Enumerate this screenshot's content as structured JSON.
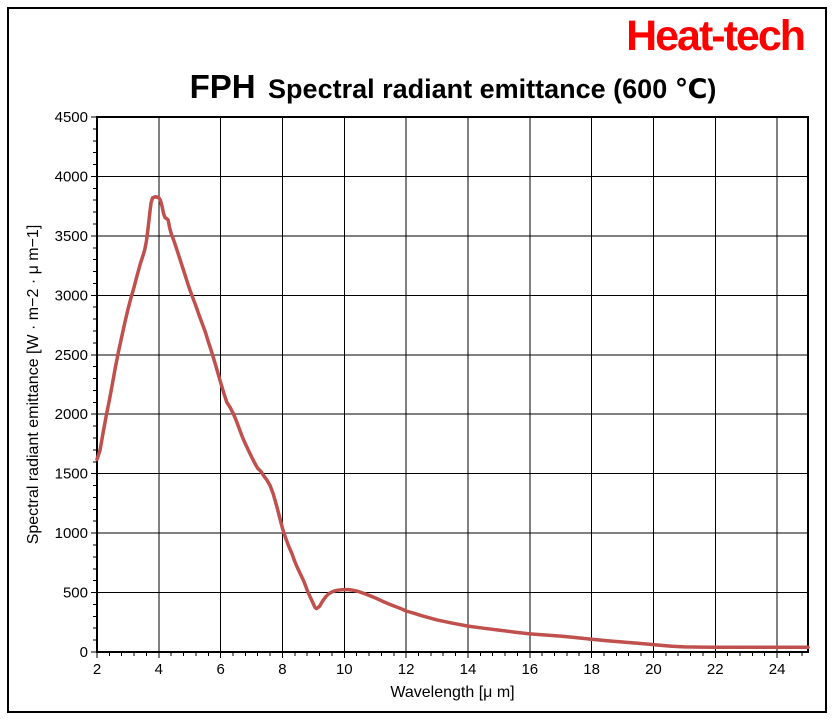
{
  "logo": {
    "text": "Heat-tech",
    "color": "#ff0000"
  },
  "title": {
    "prefix": "FPH",
    "main": "Spectral radiant emittance (600 ℃)"
  },
  "chart_data": {
    "type": "line",
    "title": "FPH Spectral radiant emittance (600 ℃)",
    "xlabel": "Wavelength [μ m]",
    "ylabel": "Spectral radiant emittance [W · m−2 · μ m−1]",
    "xlim": [
      2,
      25
    ],
    "ylim": [
      0,
      4500
    ],
    "x_major_ticks": [
      2,
      4,
      6,
      8,
      10,
      12,
      14,
      16,
      18,
      20,
      22,
      24
    ],
    "x_minor_step": 0.4,
    "y_major_step": 500,
    "y_minor_step": 100,
    "grid": true,
    "legend": "none",
    "line_color": "#c0504d",
    "grid_color": "#000000",
    "series": [
      {
        "name": "600 ℃",
        "points": [
          [
            2.0,
            1620
          ],
          [
            2.1,
            1700
          ],
          [
            2.2,
            1850
          ],
          [
            2.3,
            1990
          ],
          [
            2.4,
            2120
          ],
          [
            2.5,
            2260
          ],
          [
            2.6,
            2400
          ],
          [
            2.7,
            2530
          ],
          [
            2.8,
            2650
          ],
          [
            2.9,
            2770
          ],
          [
            3.0,
            2880
          ],
          [
            3.1,
            2980
          ],
          [
            3.2,
            3070
          ],
          [
            3.3,
            3170
          ],
          [
            3.4,
            3265
          ],
          [
            3.5,
            3345
          ],
          [
            3.55,
            3390
          ],
          [
            3.6,
            3460
          ],
          [
            3.65,
            3560
          ],
          [
            3.7,
            3680
          ],
          [
            3.75,
            3780
          ],
          [
            3.8,
            3820
          ],
          [
            3.9,
            3830
          ],
          [
            4.0,
            3820
          ],
          [
            4.05,
            3800
          ],
          [
            4.1,
            3755
          ],
          [
            4.15,
            3690
          ],
          [
            4.2,
            3655
          ],
          [
            4.3,
            3635
          ],
          [
            4.35,
            3570
          ],
          [
            4.4,
            3520
          ],
          [
            4.5,
            3450
          ],
          [
            4.6,
            3370
          ],
          [
            4.7,
            3290
          ],
          [
            4.8,
            3210
          ],
          [
            4.9,
            3130
          ],
          [
            5.0,
            3050
          ],
          [
            5.1,
            2980
          ],
          [
            5.2,
            2910
          ],
          [
            5.3,
            2835
          ],
          [
            5.4,
            2765
          ],
          [
            5.5,
            2695
          ],
          [
            5.6,
            2610
          ],
          [
            5.7,
            2530
          ],
          [
            5.8,
            2445
          ],
          [
            5.9,
            2355
          ],
          [
            6.0,
            2265
          ],
          [
            6.1,
            2180
          ],
          [
            6.2,
            2100
          ],
          [
            6.3,
            2060
          ],
          [
            6.4,
            2010
          ],
          [
            6.5,
            1950
          ],
          [
            6.6,
            1880
          ],
          [
            6.7,
            1810
          ],
          [
            6.8,
            1750
          ],
          [
            6.9,
            1695
          ],
          [
            7.0,
            1640
          ],
          [
            7.1,
            1590
          ],
          [
            7.2,
            1545
          ],
          [
            7.3,
            1520
          ],
          [
            7.4,
            1480
          ],
          [
            7.5,
            1445
          ],
          [
            7.6,
            1400
          ],
          [
            7.7,
            1330
          ],
          [
            7.8,
            1240
          ],
          [
            7.9,
            1140
          ],
          [
            8.0,
            1040
          ],
          [
            8.1,
            960
          ],
          [
            8.2,
            890
          ],
          [
            8.3,
            830
          ],
          [
            8.4,
            760
          ],
          [
            8.5,
            700
          ],
          [
            8.6,
            645
          ],
          [
            8.7,
            590
          ],
          [
            8.8,
            520
          ],
          [
            8.9,
            460
          ],
          [
            9.0,
            405
          ],
          [
            9.05,
            375
          ],
          [
            9.1,
            365
          ],
          [
            9.2,
            385
          ],
          [
            9.3,
            430
          ],
          [
            9.4,
            465
          ],
          [
            9.5,
            490
          ],
          [
            9.6,
            505
          ],
          [
            9.7,
            515
          ],
          [
            9.8,
            520
          ],
          [
            9.9,
            523
          ],
          [
            10.0,
            525
          ],
          [
            10.1,
            525
          ],
          [
            10.2,
            522
          ],
          [
            10.3,
            518
          ],
          [
            10.4,
            512
          ],
          [
            10.5,
            505
          ],
          [
            10.7,
            487
          ],
          [
            11.0,
            455
          ],
          [
            11.3,
            420
          ],
          [
            11.5,
            398
          ],
          [
            11.8,
            368
          ],
          [
            12.0,
            345
          ],
          [
            12.3,
            322
          ],
          [
            12.5,
            305
          ],
          [
            13.0,
            270
          ],
          [
            13.5,
            242
          ],
          [
            14.0,
            218
          ],
          [
            14.5,
            200
          ],
          [
            15.0,
            184
          ],
          [
            15.5,
            167
          ],
          [
            16.0,
            152
          ],
          [
            16.5,
            143
          ],
          [
            17.0,
            134
          ],
          [
            17.5,
            121
          ],
          [
            18.0,
            108
          ],
          [
            18.5,
            95
          ],
          [
            19.0,
            84
          ],
          [
            19.5,
            73
          ],
          [
            20.0,
            62
          ],
          [
            20.3,
            55
          ],
          [
            20.6,
            48
          ],
          [
            21.0,
            43
          ],
          [
            21.5,
            41
          ],
          [
            22.0,
            40
          ],
          [
            23.0,
            40
          ],
          [
            24.0,
            40
          ],
          [
            25.0,
            40
          ]
        ]
      }
    ]
  }
}
